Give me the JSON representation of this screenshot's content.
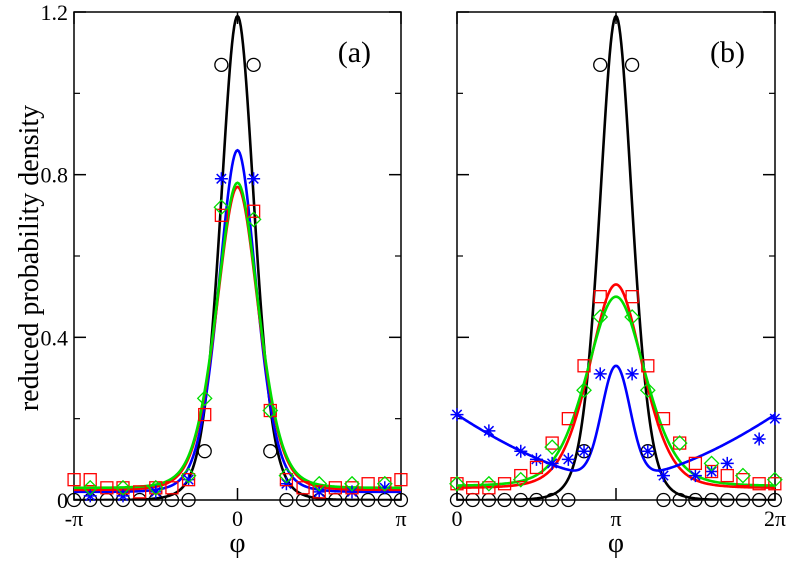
{
  "chart_data": [
    {
      "type": "line",
      "panel_label": "(a)",
      "xlabel": "φ",
      "ylabel": "reduced probability density",
      "xlim": [
        -3.14159,
        3.14159
      ],
      "ylim": [
        0,
        1.2
      ],
      "x_ticks": [
        {
          "value": -3.14159,
          "label": "-π"
        },
        {
          "value": 0,
          "label": "0"
        },
        {
          "value": 3.14159,
          "label": "π"
        }
      ],
      "y_ticks": [
        {
          "value": 0,
          "label": "0"
        },
        {
          "value": 0.4,
          "label": "0.4"
        },
        {
          "value": 0.8,
          "label": "0.8"
        },
        {
          "value": 1.2,
          "label": "1.2"
        }
      ],
      "grid": false,
      "curves": [
        {
          "color": "#000000",
          "peak_x": 0,
          "peak": 1.19,
          "width": 0.34,
          "floor": 0.0
        },
        {
          "color": "#0000ff",
          "peak_x": 0,
          "peak": 0.86,
          "width": 0.38,
          "floor": 0.02
        },
        {
          "color": "#ff0000",
          "peak_x": 0,
          "peak": 0.77,
          "width": 0.42,
          "floor": 0.025
        },
        {
          "color": "#00dd00",
          "peak_x": 0,
          "peak": 0.78,
          "width": 0.42,
          "floor": 0.03
        }
      ],
      "markers": [
        {
          "shape": "circle",
          "color": "#000000",
          "points": [
            [
              -3.14,
              0
            ],
            [
              -2.83,
              0
            ],
            [
              -2.51,
              0
            ],
            [
              -2.2,
              0
            ],
            [
              -1.88,
              0
            ],
            [
              -1.57,
              0
            ],
            [
              -1.26,
              0
            ],
            [
              -0.94,
              0
            ],
            [
              -0.63,
              0.12
            ],
            [
              -0.31,
              1.07
            ],
            [
              0.31,
              1.07
            ],
            [
              0.63,
              0.12
            ],
            [
              0.94,
              0
            ],
            [
              1.26,
              0
            ],
            [
              1.57,
              0
            ],
            [
              1.88,
              0
            ],
            [
              2.2,
              0
            ],
            [
              2.51,
              0
            ],
            [
              2.83,
              0
            ],
            [
              3.14,
              0
            ]
          ]
        },
        {
          "shape": "star",
          "color": "#0000ff",
          "points": [
            [
              -2.83,
              0.01
            ],
            [
              -2.2,
              0.01
            ],
            [
              -1.57,
              0.02
            ],
            [
              -0.94,
              0.05
            ],
            [
              -0.31,
              0.79
            ],
            [
              0.31,
              0.79
            ],
            [
              0.94,
              0.04
            ],
            [
              1.57,
              0.02
            ],
            [
              2.2,
              0.02
            ],
            [
              2.83,
              0.03
            ]
          ]
        },
        {
          "shape": "square",
          "color": "#ff0000",
          "points": [
            [
              -3.14,
              0.05
            ],
            [
              -2.83,
              0.05
            ],
            [
              -2.51,
              0.03
            ],
            [
              -2.2,
              0.03
            ],
            [
              -1.88,
              0.02
            ],
            [
              -1.57,
              0.03
            ],
            [
              -1.26,
              0.03
            ],
            [
              -0.94,
              0.05
            ],
            [
              -0.63,
              0.21
            ],
            [
              -0.31,
              0.7
            ],
            [
              0.31,
              0.71
            ],
            [
              0.63,
              0.22
            ],
            [
              0.94,
              0.05
            ],
            [
              1.26,
              0.03
            ],
            [
              1.57,
              0.02
            ],
            [
              1.88,
              0.03
            ],
            [
              2.2,
              0.03
            ],
            [
              2.51,
              0.04
            ],
            [
              2.83,
              0.04
            ],
            [
              3.14,
              0.05
            ]
          ]
        },
        {
          "shape": "diamond",
          "color": "#00dd00",
          "points": [
            [
              -2.83,
              0.03
            ],
            [
              -2.2,
              0.03
            ],
            [
              -1.57,
              0.03
            ],
            [
              -0.94,
              0.06
            ],
            [
              -0.63,
              0.25
            ],
            [
              -0.31,
              0.72
            ],
            [
              0.31,
              0.69
            ],
            [
              0.63,
              0.22
            ],
            [
              0.94,
              0.06
            ],
            [
              1.57,
              0.04
            ],
            [
              2.2,
              0.04
            ],
            [
              2.83,
              0.04
            ]
          ]
        }
      ]
    },
    {
      "type": "line",
      "panel_label": "(b)",
      "xlabel": "φ",
      "ylabel": "",
      "xlim": [
        0,
        6.28318
      ],
      "ylim": [
        0,
        1.2
      ],
      "x_ticks": [
        {
          "value": 0,
          "label": "0"
        },
        {
          "value": 3.14159,
          "label": "π"
        },
        {
          "value": 6.28318,
          "label": "2π"
        }
      ],
      "y_ticks": [
        {
          "value": 0,
          "label": ""
        },
        {
          "value": 0.4,
          "label": ""
        },
        {
          "value": 0.8,
          "label": ""
        },
        {
          "value": 1.2,
          "label": ""
        }
      ],
      "grid": false,
      "curves": [
        {
          "color": "#000000",
          "peak_x": 3.14159,
          "peak": 1.19,
          "width": 0.34,
          "floor": 0.0
        },
        {
          "color": "#ff0000",
          "peak_x": 3.14159,
          "peak": 0.53,
          "width": 0.55,
          "floor": 0.03
        },
        {
          "color": "#00dd00",
          "peak_x": 3.14159,
          "peak": 0.5,
          "width": 0.6,
          "floor": 0.035
        },
        {
          "color": "#0000ff",
          "shape": "bimodal",
          "peak_x": 3.14159,
          "peak": 0.33,
          "width": 0.28,
          "baseline": [
            0.21,
            0.05,
            0.21
          ]
        }
      ],
      "markers": [
        {
          "shape": "circle",
          "color": "#000000",
          "points": [
            [
              0,
              0
            ],
            [
              0.31,
              0
            ],
            [
              0.63,
              0
            ],
            [
              0.94,
              0
            ],
            [
              1.26,
              0
            ],
            [
              1.57,
              0
            ],
            [
              1.88,
              0
            ],
            [
              2.2,
              0
            ],
            [
              2.51,
              0.12
            ],
            [
              2.83,
              1.07
            ],
            [
              3.46,
              1.07
            ],
            [
              3.77,
              0.12
            ],
            [
              4.08,
              0
            ],
            [
              4.4,
              0
            ],
            [
              4.71,
              0
            ],
            [
              5.03,
              0
            ],
            [
              5.34,
              0
            ],
            [
              5.65,
              0
            ],
            [
              5.97,
              0
            ],
            [
              6.28,
              0
            ]
          ]
        },
        {
          "shape": "star",
          "color": "#0000ff",
          "points": [
            [
              0,
              0.21
            ],
            [
              0.63,
              0.17
            ],
            [
              1.26,
              0.12
            ],
            [
              1.57,
              0.1
            ],
            [
              1.88,
              0.09
            ],
            [
              2.2,
              0.1
            ],
            [
              2.51,
              0.12
            ],
            [
              2.83,
              0.31
            ],
            [
              3.46,
              0.31
            ],
            [
              3.77,
              0.12
            ],
            [
              4.08,
              0.06
            ],
            [
              4.71,
              0.06
            ],
            [
              5.03,
              0.07
            ],
            [
              5.34,
              0.09
            ],
            [
              5.97,
              0.15
            ],
            [
              6.28,
              0.2
            ]
          ]
        },
        {
          "shape": "square",
          "color": "#ff0000",
          "points": [
            [
              0,
              0.04
            ],
            [
              0.31,
              0.03
            ],
            [
              0.63,
              0.03
            ],
            [
              0.94,
              0.04
            ],
            [
              1.26,
              0.06
            ],
            [
              1.57,
              0.08
            ],
            [
              1.88,
              0.14
            ],
            [
              2.2,
              0.2
            ],
            [
              2.51,
              0.33
            ],
            [
              2.83,
              0.5
            ],
            [
              3.46,
              0.5
            ],
            [
              3.77,
              0.33
            ],
            [
              4.08,
              0.2
            ],
            [
              4.4,
              0.14
            ],
            [
              4.71,
              0.09
            ],
            [
              5.03,
              0.07
            ],
            [
              5.34,
              0.06
            ],
            [
              5.65,
              0.05
            ],
            [
              5.97,
              0.04
            ],
            [
              6.28,
              0.04
            ]
          ]
        },
        {
          "shape": "diamond",
          "color": "#00dd00",
          "points": [
            [
              0,
              0.04
            ],
            [
              0.63,
              0.04
            ],
            [
              1.26,
              0.05
            ],
            [
              1.88,
              0.13
            ],
            [
              2.51,
              0.27
            ],
            [
              2.83,
              0.45
            ],
            [
              3.46,
              0.45
            ],
            [
              3.77,
              0.27
            ],
            [
              4.4,
              0.14
            ],
            [
              5.03,
              0.09
            ],
            [
              5.65,
              0.06
            ],
            [
              6.28,
              0.05
            ]
          ]
        }
      ]
    }
  ]
}
